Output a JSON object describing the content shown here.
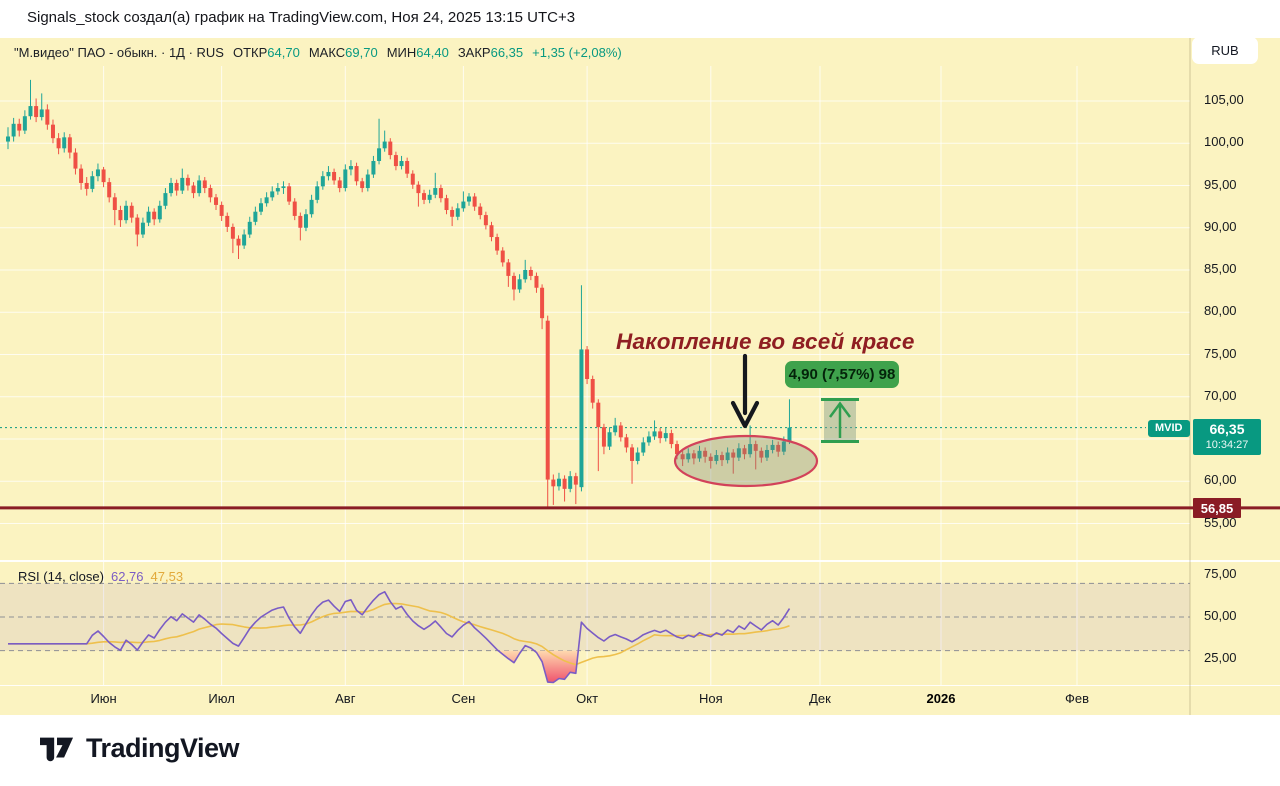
{
  "top_bar": {
    "text": "Signals_stock создал(а) график на TradingView.com, Ноя 24, 2025 13:15 UTC+3"
  },
  "legend": {
    "title": "\"М.видео\" ПАО - обыкн. · 1Д · RUS",
    "open_label": "ОТКР",
    "open_value": "64,70",
    "high_label": "МАКС",
    "high_value": "69,70",
    "low_label": "МИН",
    "low_value": "64,40",
    "close_label": "ЗАКР",
    "close_value": "66,35",
    "change": "+1,35 (+2,08%)"
  },
  "currency_button": {
    "label": "RUB"
  },
  "price_axis": {
    "labels": [
      {
        "text": "105,00",
        "value": 105
      },
      {
        "text": "100,00",
        "value": 100
      },
      {
        "text": "95,00",
        "value": 95
      },
      {
        "text": "90,00",
        "value": 90
      },
      {
        "text": "85,00",
        "value": 85
      },
      {
        "text": "80,00",
        "value": 80
      },
      {
        "text": "75,00",
        "value": 75
      },
      {
        "text": "70,00",
        "value": 70
      },
      {
        "text": "60,00",
        "value": 60
      },
      {
        "text": "55,00",
        "value": 55
      }
    ],
    "current_badge": {
      "price": "66,35",
      "countdown": "10:34:27"
    },
    "symbol_tag": "MVID",
    "support_badge": "56,85"
  },
  "rsi_axis": {
    "labels": [
      {
        "text": "75,00",
        "value": 75
      },
      {
        "text": "50,00",
        "value": 50
      },
      {
        "text": "25,00",
        "value": 25
      }
    ]
  },
  "time_axis": {
    "months": [
      {
        "label": "Июн",
        "em": false
      },
      {
        "label": "Июл",
        "em": false
      },
      {
        "label": "Авг",
        "em": false
      },
      {
        "label": "Сен",
        "em": false
      },
      {
        "label": "Окт",
        "em": false
      },
      {
        "label": "Ноя",
        "em": false
      },
      {
        "label": "Дек",
        "em": false
      },
      {
        "label": "2026",
        "em": true
      },
      {
        "label": "Фев",
        "em": false
      }
    ]
  },
  "annotation": {
    "text": "Накопление во всей красе",
    "measure_label": "4,90 (7,57%) 98"
  },
  "rsi_legend": {
    "title": "RSI (14, close)",
    "value": "62,76",
    "ma_value": "47,53"
  },
  "logo": {
    "text": "TradingView"
  },
  "colors": {
    "accent": "#089981",
    "candle_up": "#1fa598",
    "candle_down": "#ef5045",
    "support": "#8a1c25",
    "rsi_line": "#7a5cc5",
    "rsi_ma": "#eec04c",
    "annotation": "#8f1e22",
    "measure": "#2f9e4f",
    "measure_badge_bg": "#3fa24c",
    "background": "#fbf3c1"
  },
  "chart_data": {
    "type": "candlestick",
    "symbol": "MVID",
    "title": "\"М.видео\" ПАО - обыкн.",
    "interval": "1Д",
    "exchange": "RUS",
    "ohlc_today": {
      "open": 64.7,
      "high": 69.7,
      "low": 64.4,
      "close": 66.35,
      "change": 1.35,
      "change_pct": 2.08
    },
    "current_price": 66.35,
    "support_level": 56.85,
    "ylim": [
      55,
      105
    ],
    "y_tick": 5,
    "x_months": [
      "Июн",
      "Июл",
      "Авг",
      "Сен",
      "Окт",
      "Ноя",
      "Дек",
      "2026",
      "Фев"
    ],
    "candles": [
      [
        100.2,
        101.9,
        99.3,
        100.8
      ],
      [
        100.8,
        103.0,
        100.2,
        102.3
      ],
      [
        102.3,
        102.9,
        100.8,
        101.5
      ],
      [
        101.5,
        103.9,
        101.1,
        103.2
      ],
      [
        103.2,
        107.5,
        102.8,
        104.4
      ],
      [
        104.4,
        105.3,
        102.5,
        103.1
      ],
      [
        103.1,
        105.9,
        102.7,
        104.0
      ],
      [
        104.0,
        104.6,
        101.6,
        102.2
      ],
      [
        102.2,
        102.8,
        100.0,
        100.6
      ],
      [
        100.6,
        101.2,
        98.7,
        99.4
      ],
      [
        99.4,
        101.3,
        98.9,
        100.7
      ],
      [
        100.7,
        101.1,
        98.2,
        98.9
      ],
      [
        98.9,
        99.4,
        96.3,
        97.0
      ],
      [
        97.0,
        97.5,
        94.5,
        95.3
      ],
      [
        95.3,
        96.0,
        93.8,
        94.6
      ],
      [
        94.6,
        96.7,
        94.2,
        96.1
      ],
      [
        96.1,
        97.6,
        95.5,
        96.9
      ],
      [
        96.9,
        97.2,
        94.8,
        95.4
      ],
      [
        95.4,
        95.9,
        93.0,
        93.6
      ],
      [
        93.6,
        94.1,
        90.3,
        92.1
      ],
      [
        92.1,
        92.6,
        90.1,
        90.9
      ],
      [
        90.9,
        93.2,
        90.5,
        92.6
      ],
      [
        92.6,
        93.0,
        90.6,
        91.2
      ],
      [
        91.2,
        91.6,
        87.8,
        89.2
      ],
      [
        89.2,
        91.2,
        88.8,
        90.6
      ],
      [
        90.6,
        92.5,
        90.2,
        91.9
      ],
      [
        91.9,
        92.3,
        90.3,
        91.0
      ],
      [
        91.0,
        93.2,
        90.6,
        92.6
      ],
      [
        92.6,
        94.7,
        92.2,
        94.1
      ],
      [
        94.1,
        95.9,
        93.7,
        95.3
      ],
      [
        95.3,
        95.7,
        93.8,
        94.4
      ],
      [
        94.4,
        97.0,
        94.0,
        95.9
      ],
      [
        95.9,
        96.3,
        94.4,
        95.0
      ],
      [
        95.0,
        95.4,
        93.5,
        94.1
      ],
      [
        94.1,
        96.2,
        93.7,
        95.6
      ],
      [
        95.6,
        96.0,
        94.1,
        94.7
      ],
      [
        94.7,
        95.1,
        93.0,
        93.6
      ],
      [
        93.6,
        94.0,
        92.1,
        92.7
      ],
      [
        92.7,
        93.1,
        90.8,
        91.4
      ],
      [
        91.4,
        91.8,
        89.5,
        90.1
      ],
      [
        90.1,
        90.5,
        87.0,
        88.7
      ],
      [
        88.7,
        89.1,
        86.3,
        87.9
      ],
      [
        87.9,
        89.8,
        87.5,
        89.2
      ],
      [
        89.2,
        91.3,
        88.8,
        90.7
      ],
      [
        90.7,
        92.5,
        90.3,
        91.9
      ],
      [
        91.9,
        93.5,
        91.5,
        92.9
      ],
      [
        92.9,
        94.2,
        92.5,
        93.6
      ],
      [
        93.6,
        94.9,
        93.2,
        94.3
      ],
      [
        94.3,
        95.3,
        93.9,
        94.7
      ],
      [
        94.7,
        95.5,
        94.0,
        94.9
      ],
      [
        94.9,
        95.3,
        92.7,
        93.1
      ],
      [
        93.1,
        93.5,
        90.9,
        91.4
      ],
      [
        91.4,
        91.8,
        88.5,
        90.0
      ],
      [
        90.0,
        92.2,
        89.6,
        91.6
      ],
      [
        91.6,
        93.9,
        91.2,
        93.3
      ],
      [
        93.3,
        95.5,
        92.9,
        94.9
      ],
      [
        94.9,
        96.7,
        94.5,
        96.1
      ],
      [
        96.1,
        97.3,
        95.6,
        96.6
      ],
      [
        96.6,
        97.0,
        95.1,
        95.6
      ],
      [
        95.6,
        96.0,
        94.2,
        94.7
      ],
      [
        94.7,
        97.5,
        94.3,
        96.9
      ],
      [
        96.9,
        98.0,
        96.2,
        97.3
      ],
      [
        97.3,
        97.7,
        95.0,
        95.5
      ],
      [
        95.5,
        95.9,
        94.2,
        94.7
      ],
      [
        94.7,
        96.9,
        94.3,
        96.3
      ],
      [
        96.3,
        98.5,
        95.9,
        97.9
      ],
      [
        97.9,
        102.9,
        97.5,
        99.4
      ],
      [
        99.4,
        101.5,
        99.0,
        100.2
      ],
      [
        100.2,
        100.6,
        98.1,
        98.6
      ],
      [
        98.6,
        99.0,
        96.8,
        97.3
      ],
      [
        97.3,
        98.5,
        96.9,
        97.9
      ],
      [
        97.9,
        98.3,
        95.9,
        96.4
      ],
      [
        96.4,
        96.8,
        94.6,
        95.1
      ],
      [
        95.1,
        95.5,
        92.5,
        94.1
      ],
      [
        94.1,
        94.5,
        92.8,
        93.3
      ],
      [
        93.3,
        94.5,
        92.9,
        93.9
      ],
      [
        93.9,
        96.5,
        93.5,
        94.7
      ],
      [
        94.7,
        95.1,
        93.0,
        93.5
      ],
      [
        93.5,
        93.9,
        91.6,
        92.1
      ],
      [
        92.1,
        92.5,
        90.2,
        91.3
      ],
      [
        91.3,
        92.9,
        90.9,
        92.3
      ],
      [
        92.3,
        94.3,
        91.9,
        93.1
      ],
      [
        93.1,
        94.1,
        92.6,
        93.7
      ],
      [
        93.7,
        94.1,
        92.0,
        92.5
      ],
      [
        92.5,
        92.9,
        91.0,
        91.5
      ],
      [
        91.5,
        91.9,
        89.8,
        90.3
      ],
      [
        90.3,
        90.7,
        88.4,
        88.9
      ],
      [
        88.9,
        89.3,
        86.8,
        87.3
      ],
      [
        87.3,
        87.7,
        85.4,
        85.9
      ],
      [
        85.9,
        86.3,
        83.0,
        84.3
      ],
      [
        84.3,
        84.7,
        81.4,
        82.7
      ],
      [
        82.7,
        84.5,
        82.3,
        83.9
      ],
      [
        83.9,
        86.2,
        83.5,
        85.0
      ],
      [
        85.0,
        85.4,
        83.8,
        84.3
      ],
      [
        84.3,
        84.7,
        82.3,
        82.9
      ],
      [
        82.9,
        83.3,
        78.0,
        79.3
      ],
      [
        79.0,
        79.6,
        56.9,
        60.2
      ],
      [
        60.2,
        60.8,
        57.2,
        59.4
      ],
      [
        59.4,
        61.0,
        58.9,
        60.3
      ],
      [
        60.3,
        60.7,
        57.6,
        59.1
      ],
      [
        59.1,
        61.2,
        58.7,
        60.6
      ],
      [
        60.6,
        61.0,
        57.3,
        59.6
      ],
      [
        59.3,
        83.2,
        58.8,
        75.6
      ],
      [
        75.6,
        76.0,
        71.5,
        72.1
      ],
      [
        72.1,
        72.5,
        68.6,
        69.3
      ],
      [
        69.3,
        69.7,
        61.2,
        66.4
      ],
      [
        66.4,
        66.8,
        63.2,
        64.1
      ],
      [
        64.1,
        66.4,
        63.7,
        65.8
      ],
      [
        65.8,
        67.5,
        65.4,
        66.6
      ],
      [
        66.6,
        67.0,
        64.7,
        65.2
      ],
      [
        65.2,
        65.6,
        63.4,
        64.0
      ],
      [
        64.0,
        64.4,
        59.7,
        62.4
      ],
      [
        62.4,
        64.0,
        62.0,
        63.4
      ],
      [
        63.4,
        65.2,
        63.0,
        64.6
      ],
      [
        64.6,
        65.9,
        64.2,
        65.3
      ],
      [
        65.3,
        67.2,
        64.9,
        65.9
      ],
      [
        65.9,
        66.3,
        64.5,
        65.1
      ],
      [
        65.1,
        66.3,
        64.7,
        65.7
      ],
      [
        65.7,
        66.1,
        63.9,
        64.4
      ],
      [
        64.4,
        64.8,
        62.6,
        63.2
      ],
      [
        63.2,
        63.6,
        61.8,
        62.6
      ],
      [
        62.6,
        63.9,
        62.2,
        63.3
      ],
      [
        63.3,
        63.7,
        62.0,
        62.7
      ],
      [
        62.7,
        64.2,
        62.3,
        63.6
      ],
      [
        63.6,
        64.0,
        62.2,
        62.9
      ],
      [
        62.9,
        63.3,
        61.5,
        62.4
      ],
      [
        62.4,
        63.7,
        62.0,
        63.1
      ],
      [
        63.1,
        63.5,
        61.8,
        62.5
      ],
      [
        62.5,
        64.0,
        62.1,
        63.4
      ],
      [
        63.4,
        63.8,
        60.9,
        62.8
      ],
      [
        62.8,
        64.5,
        62.4,
        63.9
      ],
      [
        63.9,
        64.3,
        62.6,
        63.2
      ],
      [
        63.2,
        66.6,
        62.8,
        64.4
      ],
      [
        64.4,
        64.8,
        61.4,
        63.6
      ],
      [
        63.6,
        64.0,
        62.2,
        62.8
      ],
      [
        62.8,
        64.3,
        62.4,
        63.7
      ],
      [
        63.7,
        64.9,
        63.3,
        64.3
      ],
      [
        64.3,
        64.7,
        62.9,
        63.5
      ],
      [
        63.5,
        65.3,
        63.1,
        64.7
      ],
      [
        64.7,
        69.7,
        64.4,
        66.35
      ]
    ],
    "rsi": {
      "period": 14,
      "source": "close",
      "value": 62.76,
      "ma_value": 47.53,
      "overbought": 70,
      "mid": 50,
      "oversold": 30,
      "scale_labels": [
        75,
        50,
        25
      ]
    },
    "measure_tool": {
      "label": "4,90 (7,57%) 98",
      "delta": 4.9,
      "delta_pct": 7.57,
      "bars": 98
    }
  }
}
